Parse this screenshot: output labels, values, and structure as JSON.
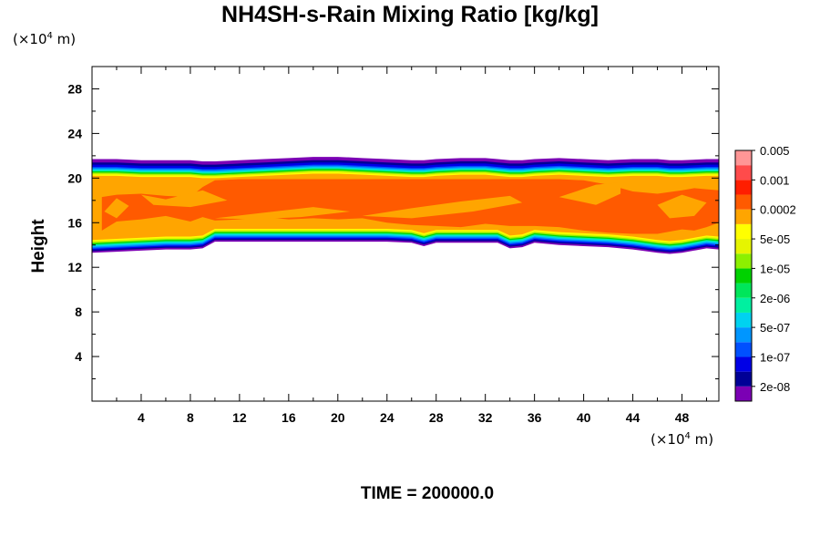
{
  "chart_data": {
    "type": "heatmap",
    "title": "NH4SH-s-Rain Mixing Ratio [kg/kg]",
    "ylabel": "Height",
    "xlabel": "",
    "x_unit": {
      "prefix": "(×10",
      "exp": "4",
      "suffix": " m)"
    },
    "y_unit": {
      "prefix": "(×10",
      "exp": "4",
      "suffix": " m)"
    },
    "xlim": [
      0,
      51
    ],
    "ylim": [
      0,
      30
    ],
    "xticks": [
      4,
      8,
      12,
      16,
      20,
      24,
      28,
      32,
      36,
      40,
      44,
      48
    ],
    "yticks": [
      4,
      8,
      12,
      16,
      20,
      24,
      28
    ],
    "time_label": "TIME = 200000.0",
    "colorbar": {
      "colors": [
        "#7b00b4",
        "#000096",
        "#0000e6",
        "#0050ff",
        "#0096ff",
        "#00d2f0",
        "#00f0a0",
        "#00e65a",
        "#00d200",
        "#8cf000",
        "#e6f500",
        "#ffff00",
        "#ffa500",
        "#ff5a00",
        "#ff1e00",
        "#ff4b4b",
        "#ff9696"
      ],
      "labels": [
        "2e-08",
        "1e-07",
        "5e-07",
        "2e-06",
        "1e-05",
        "5e-05",
        "0.0002",
        "0.001",
        "0.005"
      ]
    },
    "layer": {
      "x": [
        0,
        2,
        4,
        6,
        8,
        9,
        10,
        12,
        14,
        16,
        18,
        20,
        22,
        24,
        26,
        27,
        28,
        30,
        32,
        33,
        34,
        35,
        36,
        38,
        40,
        42,
        44,
        46,
        47,
        48,
        50,
        51
      ],
      "top": [
        21.7,
        21.7,
        21.6,
        21.6,
        21.6,
        21.5,
        21.5,
        21.6,
        21.7,
        21.8,
        21.9,
        21.9,
        21.8,
        21.7,
        21.6,
        21.6,
        21.7,
        21.8,
        21.8,
        21.7,
        21.6,
        21.6,
        21.7,
        21.8,
        21.7,
        21.6,
        21.7,
        21.7,
        21.6,
        21.6,
        21.7,
        21.7
      ],
      "bottom": [
        13.3,
        13.4,
        13.5,
        13.6,
        13.6,
        13.7,
        14.3,
        14.3,
        14.3,
        14.3,
        14.3,
        14.3,
        14.3,
        14.3,
        14.2,
        13.9,
        14.2,
        14.2,
        14.2,
        14.2,
        13.7,
        13.8,
        14.2,
        14.0,
        13.9,
        13.8,
        13.6,
        13.3,
        13.2,
        13.3,
        13.7,
        13.6
      ]
    },
    "core_region": {
      "x": [
        0.8,
        2,
        4,
        6,
        8,
        9,
        10,
        12,
        14,
        16,
        18,
        20,
        22,
        24,
        26,
        28,
        30,
        32,
        34,
        36,
        38,
        40,
        42,
        44,
        46,
        48,
        49,
        50,
        51
      ],
      "top": [
        18.3,
        18.5,
        18.6,
        18.4,
        18.3,
        19.2,
        19.8,
        19.9,
        19.9,
        19.9,
        19.9,
        19.9,
        19.9,
        19.9,
        19.9,
        19.9,
        19.9,
        19.9,
        19.9,
        19.9,
        19.9,
        19.8,
        19.4,
        18.8,
        18.6,
        18.9,
        19.1,
        19.0,
        18.9
      ],
      "bottom": [
        15.3,
        16.1,
        16.3,
        16.6,
        16.1,
        16.5,
        16.2,
        16.3,
        16.5,
        16.3,
        16.4,
        16.3,
        16.4,
        16.0,
        15.8,
        15.7,
        15.6,
        15.9,
        15.7,
        15.7,
        15.6,
        15.3,
        15.1,
        15.0,
        15.0,
        15.4,
        15.3,
        15.6,
        16.0
      ]
    }
  }
}
